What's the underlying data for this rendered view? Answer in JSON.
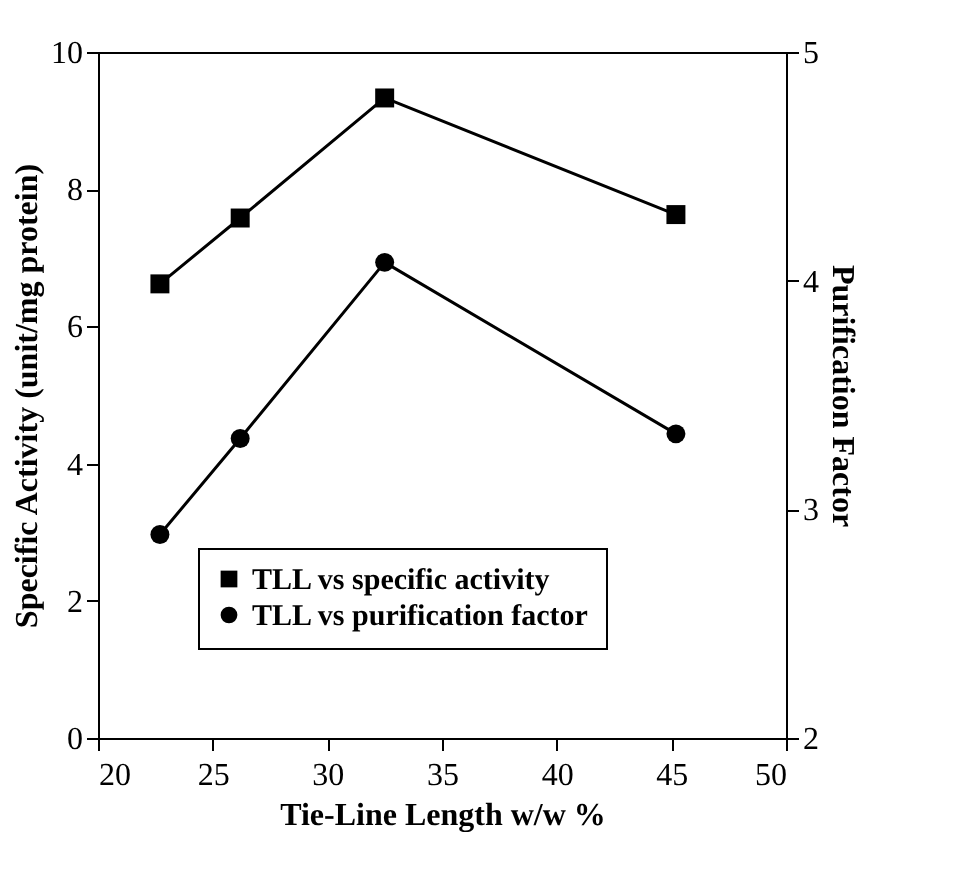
{
  "chart_data": {
    "type": "line",
    "xlabel": "Tie-Line Length w/w %",
    "ylabel": "Specific Activity (unit/mg protein)",
    "y2label": "Purification Factor",
    "x": [
      22.7,
      26.2,
      32.5,
      45.2
    ],
    "series": [
      {
        "name": "TLL vs specific activity",
        "color": "#000000",
        "marker": "square",
        "values": [
          6.62,
          7.58,
          9.33,
          7.63
        ]
      },
      {
        "name": "TLL vs purification factor",
        "color": "#000000",
        "marker": "circle",
        "axis": "y2",
        "values": [
          2.89,
          3.31,
          4.08,
          3.33
        ]
      }
    ],
    "xlim": [
      20,
      50
    ],
    "xticks": [
      20,
      25,
      30,
      35,
      40,
      45,
      50
    ],
    "ylim": [
      0,
      10
    ],
    "yticks": [
      0,
      2,
      4,
      6,
      8,
      10
    ],
    "y2lim": [
      2,
      5
    ],
    "y2ticks": [
      2,
      3,
      4,
      5
    ],
    "grid": false,
    "legend": "bottom",
    "line_style": "solid"
  }
}
